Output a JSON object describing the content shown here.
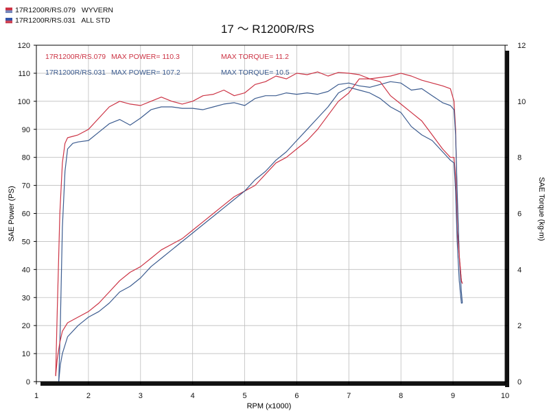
{
  "legend": [
    {
      "label": "17R1200R/RS.079   WYVERN",
      "flag_top": "#cc3344",
      "flag_bottom": "#7788bb"
    },
    {
      "label": "17R1200R/RS.031   ALL STD",
      "flag_top": "#3355aa",
      "flag_bottom": "#cc4455"
    }
  ],
  "title": "17 ～ R1200R/RS",
  "annotations": {
    "red": {
      "name": "17R1200R/RS.079",
      "power": "MAX POWER= 110.3",
      "torque": "MAX TORQUE= 11.2"
    },
    "blue": {
      "name": "17R1200R/RS.031",
      "power": "MAX POWER= 107.2",
      "torque": "MAX TORQUE= 10.5"
    }
  },
  "colors": {
    "red": "#cc3344",
    "blue": "#3b5b8f",
    "grid": "#bdbdbd",
    "frame": "#000000"
  },
  "chart_data": {
    "type": "line",
    "xlabel": "RPM (x1000)",
    "ylabel": "SAE Power (PS)",
    "y2label": "SAE Torque (kg-m)",
    "xlim": [
      1,
      10
    ],
    "ylim": [
      0,
      120
    ],
    "y2lim": [
      0,
      12
    ],
    "xticks": [
      "1",
      "2",
      "3",
      "4",
      "5",
      "6",
      "7",
      "8",
      "9",
      "10"
    ],
    "yticks": [
      "0",
      "10",
      "20",
      "30",
      "40",
      "50",
      "60",
      "70",
      "80",
      "90",
      "100",
      "110",
      "120"
    ],
    "y2ticks": [
      "0",
      "2",
      "4",
      "6",
      "8",
      "10",
      "12"
    ],
    "grid": true,
    "series": [
      {
        "name": "17R1200R/RS.079",
        "quantity": "power",
        "axis": "left",
        "color": "#cc3344",
        "x": [
          1.37,
          1.4,
          1.45,
          1.5,
          1.55,
          1.6,
          1.7,
          1.8,
          2.0,
          2.2,
          2.4,
          2.6,
          2.8,
          3.0,
          3.2,
          3.4,
          3.6,
          3.8,
          4.0,
          4.2,
          4.4,
          4.6,
          4.8,
          5.0,
          5.2,
          5.4,
          5.6,
          5.8,
          6.0,
          6.2,
          6.4,
          6.6,
          6.8,
          7.0,
          7.2,
          7.4,
          7.6,
          7.8,
          8.0,
          8.2,
          8.4,
          8.6,
          8.8,
          8.95,
          9.02,
          9.05,
          9.08,
          9.12,
          9.16,
          9.18
        ],
        "y": [
          2,
          25,
          60,
          78,
          85,
          87,
          87.5,
          88,
          90,
          94,
          98,
          100,
          99,
          98.5,
          100,
          101.5,
          100,
          99,
          100,
          102,
          102.5,
          104,
          102,
          103,
          106,
          107,
          109,
          108,
          110,
          109.5,
          110.5,
          109,
          110.3,
          110,
          109.5,
          108,
          108.5,
          109,
          110,
          109,
          107.5,
          106.5,
          105.5,
          104.5,
          100,
          90,
          65,
          45,
          36,
          35
        ]
      },
      {
        "name": "17R1200R/RS.031",
        "quantity": "power",
        "axis": "left",
        "color": "#3b5b8f",
        "x": [
          1.43,
          1.46,
          1.5,
          1.55,
          1.6,
          1.7,
          1.8,
          2.0,
          2.2,
          2.4,
          2.6,
          2.8,
          3.0,
          3.2,
          3.4,
          3.6,
          3.8,
          4.0,
          4.2,
          4.4,
          4.6,
          4.8,
          5.0,
          5.2,
          5.4,
          5.6,
          5.8,
          6.0,
          6.2,
          6.4,
          6.6,
          6.8,
          7.0,
          7.2,
          7.4,
          7.6,
          7.8,
          8.0,
          8.2,
          8.4,
          8.6,
          8.8,
          8.95,
          9.02,
          9.05,
          9.08,
          9.12,
          9.16,
          9.18
        ],
        "y": [
          0,
          20,
          55,
          75,
          83,
          85,
          85.5,
          86,
          89,
          92,
          93.5,
          91.5,
          94,
          97,
          98,
          98,
          97.5,
          97.5,
          97,
          98,
          99,
          99.5,
          98.5,
          101,
          102,
          102,
          103,
          102.5,
          103,
          102.5,
          103.5,
          106,
          106.5,
          105.5,
          105,
          106,
          107,
          106.5,
          104,
          104.5,
          102,
          99.5,
          98.5,
          97,
          88,
          68,
          45,
          32,
          28
        ]
      },
      {
        "name": "17R1200R/RS.079",
        "quantity": "torque",
        "axis": "right",
        "color": "#cc3344",
        "x": [
          1.37,
          1.4,
          1.45,
          1.5,
          1.6,
          1.8,
          2.0,
          2.2,
          2.4,
          2.6,
          2.8,
          3.0,
          3.2,
          3.4,
          3.6,
          3.8,
          4.0,
          4.2,
          4.4,
          4.6,
          4.8,
          5.0,
          5.2,
          5.4,
          5.6,
          5.8,
          6.0,
          6.2,
          6.4,
          6.6,
          6.8,
          7.0,
          7.2,
          7.4,
          7.6,
          7.8,
          8.0,
          8.2,
          8.4,
          8.6,
          8.8,
          8.95,
          9.02,
          9.05,
          9.08,
          9.12,
          9.16,
          9.18
        ],
        "y": [
          0.2,
          0.8,
          1.4,
          1.8,
          2.1,
          2.3,
          2.5,
          2.8,
          3.2,
          3.6,
          3.9,
          4.1,
          4.4,
          4.7,
          4.9,
          5.1,
          5.4,
          5.7,
          6.0,
          6.3,
          6.6,
          6.8,
          7.0,
          7.4,
          7.8,
          8.0,
          8.3,
          8.6,
          9.0,
          9.5,
          10.0,
          10.3,
          10.8,
          10.8,
          10.7,
          10.2,
          9.9,
          9.6,
          9.3,
          8.8,
          8.3,
          8.0,
          8.0,
          7.3,
          5.4,
          4.5,
          3.6,
          3.5
        ]
      },
      {
        "name": "17R1200R/RS.031",
        "quantity": "torque",
        "axis": "right",
        "color": "#3b5b8f",
        "x": [
          1.43,
          1.46,
          1.5,
          1.6,
          1.8,
          2.0,
          2.2,
          2.4,
          2.6,
          2.8,
          3.0,
          3.2,
          3.4,
          3.6,
          3.8,
          4.0,
          4.2,
          4.4,
          4.6,
          4.8,
          5.0,
          5.2,
          5.4,
          5.6,
          5.8,
          6.0,
          6.2,
          6.4,
          6.6,
          6.8,
          7.0,
          7.2,
          7.4,
          7.6,
          7.8,
          8.0,
          8.2,
          8.4,
          8.6,
          8.8,
          8.95,
          9.02,
          9.05,
          9.08,
          9.12,
          9.16,
          9.18
        ],
        "y": [
          0,
          0.6,
          1.0,
          1.6,
          2.0,
          2.3,
          2.5,
          2.8,
          3.2,
          3.4,
          3.7,
          4.1,
          4.4,
          4.7,
          5.0,
          5.3,
          5.6,
          5.9,
          6.2,
          6.5,
          6.8,
          7.2,
          7.5,
          7.9,
          8.2,
          8.6,
          9.0,
          9.4,
          9.8,
          10.3,
          10.5,
          10.4,
          10.3,
          10.1,
          9.8,
          9.6,
          9.1,
          8.8,
          8.6,
          8.2,
          7.9,
          7.8,
          6.8,
          5.0,
          3.6,
          2.8,
          2.8
        ]
      }
    ]
  }
}
